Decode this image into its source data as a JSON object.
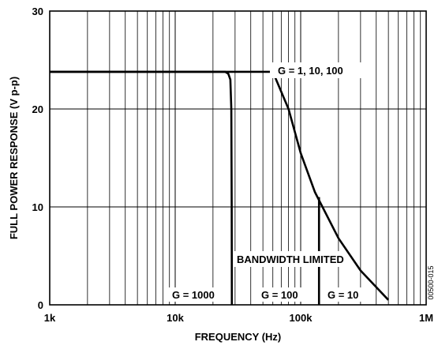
{
  "chart_data": {
    "type": "line",
    "xlabel": "FREQUENCY (Hz)",
    "ylabel": "FULL POWER RESPONSE (V p-p)",
    "xscale": "log",
    "xlim": [
      1000,
      1000000
    ],
    "ylim": [
      0,
      30
    ],
    "grid": true,
    "x_tick_labels": [
      "1k",
      "10k",
      "100k",
      "1M"
    ],
    "x_tick_values": [
      1000,
      10000,
      100000,
      1000000
    ],
    "y_tick_labels": [
      "0",
      "10",
      "20",
      "30"
    ],
    "y_tick_values": [
      0,
      10,
      20,
      30
    ],
    "series": [
      {
        "name": "G = 1, 10, 100",
        "points": [
          [
            1000,
            23.8
          ],
          [
            60000,
            23.8
          ],
          [
            80000,
            20.0
          ],
          [
            100000,
            15.5
          ],
          [
            130000,
            11.5
          ],
          [
            200000,
            6.8
          ],
          [
            300000,
            3.5
          ],
          [
            500000,
            0.5
          ]
        ]
      },
      {
        "name": "G = 1000",
        "points": [
          [
            1000,
            23.8
          ],
          [
            25000,
            23.8
          ],
          [
            26500,
            23.6
          ],
          [
            27500,
            23.0
          ],
          [
            28000,
            20.0
          ],
          [
            28200,
            10.0
          ],
          [
            28300,
            0
          ]
        ]
      }
    ],
    "bandwidth_limits": [
      {
        "label": "G = 1000",
        "x": 28300
      },
      {
        "label": "G = 100",
        "x": 140000
      },
      {
        "label": "G = 10",
        "x": 500000
      }
    ],
    "annotations": [
      "G = 1, 10, 100",
      "BANDWIDTH LIMITED"
    ],
    "figure_id": "00500-015"
  }
}
